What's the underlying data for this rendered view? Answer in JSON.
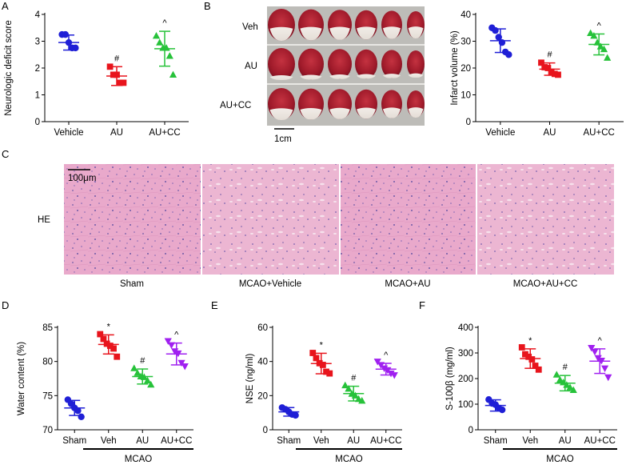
{
  "panels": {
    "a": "A",
    "b": "B",
    "c": "C",
    "d": "D",
    "e": "E",
    "f": "F"
  },
  "chart_data": [
    {
      "id": "A",
      "type": "scatter",
      "ylabel": "Neurologic deficit score",
      "ylim": [
        0,
        4
      ],
      "yticks": [
        0,
        1,
        2,
        3,
        4
      ],
      "categories": [
        "Vehicle",
        "AU",
        "AU+CC"
      ],
      "colors": [
        "#1f1fd6",
        "#e8141c",
        "#27c23a"
      ],
      "markers": [
        "circle",
        "square",
        "triangle"
      ],
      "means": [
        2.95,
        1.7,
        2.72
      ],
      "sd": [
        0.28,
        0.35,
        0.65
      ],
      "points": [
        [
          3.25,
          3.25,
          2.95,
          2.75,
          2.75
        ],
        [
          2.05,
          1.75,
          1.75,
          1.45,
          1.45
        ],
        [
          3.2,
          2.95,
          2.75,
          2.75,
          2.45,
          1.75
        ]
      ],
      "annotations": [
        "",
        "#",
        "^"
      ]
    },
    {
      "id": "B",
      "type": "scatter",
      "ylabel": "Infarct volume (%)",
      "ylim": [
        0,
        40
      ],
      "yticks": [
        0,
        10,
        20,
        30,
        40
      ],
      "categories": [
        "Vehicle",
        "AU",
        "AU+CC"
      ],
      "colors": [
        "#1f1fd6",
        "#e8141c",
        "#27c23a"
      ],
      "markers": [
        "circle",
        "square",
        "triangle"
      ],
      "means": [
        30.2,
        19.6,
        28.8
      ],
      "sd": [
        4.4,
        2.3,
        3.9
      ],
      "points": [
        [
          35,
          34,
          31.5,
          29.5,
          26,
          25
        ],
        [
          22,
          20.3,
          20,
          18.6,
          17.8,
          17.5
        ],
        [
          33,
          32,
          29.5,
          28,
          27,
          23.8
        ]
      ],
      "annotations": [
        "",
        "#",
        "^"
      ]
    },
    {
      "id": "D",
      "type": "scatter",
      "ylabel": "Water content (%)",
      "ylim": [
        70,
        85
      ],
      "yticks": [
        70,
        75,
        80,
        85
      ],
      "categories": [
        "Sham",
        "Veh",
        "AU",
        "AU+CC"
      ],
      "colors": [
        "#1f1fd6",
        "#e8141c",
        "#27c23a",
        "#a020f0"
      ],
      "markers": [
        "circle",
        "square",
        "triangle",
        "invtriangle"
      ],
      "means": [
        73.2,
        82.5,
        77.8,
        81.1
      ],
      "sd": [
        1.1,
        1.4,
        1.1,
        1.6
      ],
      "points": [
        [
          74.4,
          73.8,
          73.2,
          72.8,
          71.9
        ],
        [
          84,
          83.3,
          82.6,
          82.3,
          81.9,
          80.7
        ],
        [
          79,
          78.3,
          77.8,
          77.7,
          77.2,
          76.6
        ],
        [
          83,
          82.4,
          81.5,
          81.2,
          79.8,
          79.3
        ]
      ],
      "annotations": [
        "",
        "*",
        "#",
        "^"
      ],
      "group_label": "MCAO"
    },
    {
      "id": "E",
      "type": "scatter",
      "ylabel": "NSE (ng/ml)",
      "ylim": [
        0,
        60
      ],
      "yticks": [
        0,
        20,
        40,
        60
      ],
      "categories": [
        "Sham",
        "Veh",
        "AU",
        "AU+CC"
      ],
      "colors": [
        "#1f1fd6",
        "#e8141c",
        "#27c23a",
        "#a020f0"
      ],
      "markers": [
        "circle",
        "square",
        "triangle",
        "invtriangle"
      ],
      "means": [
        10.5,
        38.8,
        21.2,
        35.5
      ],
      "sd": [
        2.5,
        6.0,
        4.3,
        3.4
      ],
      "points": [
        [
          13,
          12,
          10.5,
          9,
          8.5
        ],
        [
          45,
          42,
          39,
          38,
          34,
          33
        ],
        [
          26,
          24,
          21,
          20,
          18,
          17
        ],
        [
          40,
          38,
          36,
          35,
          33,
          32
        ]
      ],
      "annotations": [
        "",
        "*",
        "#",
        "^"
      ],
      "group_label": "MCAO"
    },
    {
      "id": "F",
      "type": "scatter",
      "ylabel": "S-100β (mg/ml)",
      "ylim": [
        0,
        400
      ],
      "yticks": [
        0,
        100,
        200,
        300,
        400
      ],
      "categories": [
        "Sham",
        "Veh",
        "AU",
        "AU+CC"
      ],
      "colors": [
        "#1f1fd6",
        "#e8141c",
        "#27c23a",
        "#a020f0"
      ],
      "markers": [
        "circle",
        "square",
        "triangle",
        "invtriangle"
      ],
      "means": [
        95,
        278,
        182,
        268
      ],
      "sd": [
        22,
        38,
        30,
        48
      ],
      "points": [
        [
          118,
          103,
          98,
          85,
          78
        ],
        [
          322,
          295,
          285,
          275,
          250,
          235
        ],
        [
          215,
          195,
          185,
          175,
          165,
          155
        ],
        [
          320,
          305,
          280,
          270,
          240,
          205
        ]
      ],
      "annotations": [
        "",
        "*",
        "#",
        "^"
      ],
      "group_label": "MCAO"
    }
  ],
  "panel_b_images": {
    "rows": [
      "Veh",
      "AU",
      "AU+CC"
    ],
    "scale_bar": "1cm"
  },
  "panel_c_images": {
    "stain": "HE",
    "scale_bar": "100μm",
    "labels": [
      "Sham",
      "MCAO+Vehicle",
      "MCAO+AU",
      "MCAO+AU+CC"
    ]
  }
}
